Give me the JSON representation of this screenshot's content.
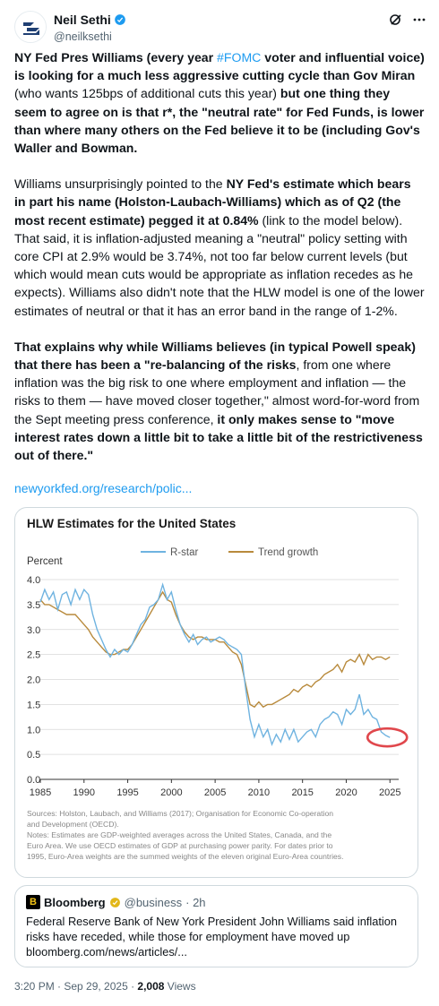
{
  "author": {
    "name": "Neil Sethi",
    "handle": "@neilksethi"
  },
  "tweet": {
    "p1": {
      "a": "NY Fed Pres Williams (every year ",
      "hashtag": "#FOMC",
      "b": " voter and influential voice) is looking for a much less aggressive cutting cycle than Gov Miran",
      "c": " (who wants 125bps of additional cuts this year) ",
      "d": "but one thing they seem to agree on is that r*, the \"neutral rate\" for Fed Funds, is lower than where many others on the Fed believe it to be (including Gov's Waller and Bowman."
    },
    "p2": {
      "a": "Williams unsurprisingly pointed to the ",
      "b": "NY Fed's estimate which bears in part his name (Holston-Laubach-Williams) which as of Q2 (the most recent estimate) pegged it at 0.84%",
      "c": " (link to the model below).  That said, it is inflation-adjusted meaning a \"neutral\" policy setting with core CPI at 2.9% would be 3.74%, not too far below current levels (but which would mean cuts would be appropriate as inflation recedes as he expects).  Williams also didn't note that the HLW model is one of the lower estimates of neutral or that it has an error band in the range of 1-2%."
    },
    "p3": {
      "a": "That explains why while Williams believes (in typical Powell speak) that there has been a \"re-balancing of the risks",
      "b": ", from one where inflation was the big risk to one where employment and inflation — the risks to them — have moved closer together,\" almost word-for-word from the Sept meeting press conference, ",
      "c": "it only makes sense to \"move interest rates down a little bit to take a little bit of the restrictiveness out of there.\""
    },
    "link": "newyorkfed.org/research/polic..."
  },
  "chart_data": {
    "type": "line",
    "title": "HLW Estimates for the United States",
    "ylabel": "Percent",
    "xlabel": "",
    "xlim": [
      1985,
      2026
    ],
    "ylim": [
      0.0,
      4.0
    ],
    "x_ticks": [
      "1985",
      "1990",
      "1995",
      "2000",
      "2005",
      "2010",
      "2015",
      "2020",
      "2025"
    ],
    "y_ticks": [
      "0.0",
      "0.5",
      "1.0",
      "1.5",
      "2.0",
      "2.5",
      "3.0",
      "3.5",
      "4.0"
    ],
    "legend": [
      "R-star",
      "Trend growth"
    ],
    "legend_position": "top-center",
    "series": [
      {
        "name": "R-star",
        "color": "#6fb3e0",
        "points": [
          [
            1985,
            3.55
          ],
          [
            1985.5,
            3.8
          ],
          [
            1986,
            3.6
          ],
          [
            1986.5,
            3.75
          ],
          [
            1987,
            3.4
          ],
          [
            1987.5,
            3.7
          ],
          [
            1988,
            3.75
          ],
          [
            1988.5,
            3.5
          ],
          [
            1989,
            3.8
          ],
          [
            1989.5,
            3.6
          ],
          [
            1990,
            3.8
          ],
          [
            1990.5,
            3.7
          ],
          [
            1991,
            3.3
          ],
          [
            1991.5,
            3.0
          ],
          [
            1992,
            2.8
          ],
          [
            1992.5,
            2.6
          ],
          [
            1993,
            2.45
          ],
          [
            1993.5,
            2.6
          ],
          [
            1994,
            2.5
          ],
          [
            1994.5,
            2.6
          ],
          [
            1995,
            2.55
          ],
          [
            1995.5,
            2.7
          ],
          [
            1996,
            2.9
          ],
          [
            1996.5,
            3.1
          ],
          [
            1997,
            3.2
          ],
          [
            1997.5,
            3.45
          ],
          [
            1998,
            3.5
          ],
          [
            1998.5,
            3.6
          ],
          [
            1999,
            3.9
          ],
          [
            1999.5,
            3.6
          ],
          [
            2000,
            3.75
          ],
          [
            2000.5,
            3.4
          ],
          [
            2001,
            3.1
          ],
          [
            2001.5,
            2.9
          ],
          [
            2002,
            2.75
          ],
          [
            2002.5,
            2.9
          ],
          [
            2003,
            2.7
          ],
          [
            2003.5,
            2.8
          ],
          [
            2004,
            2.85
          ],
          [
            2004.5,
            2.75
          ],
          [
            2005,
            2.8
          ],
          [
            2005.5,
            2.85
          ],
          [
            2006,
            2.8
          ],
          [
            2006.5,
            2.7
          ],
          [
            2007,
            2.65
          ],
          [
            2007.5,
            2.6
          ],
          [
            2008,
            2.5
          ],
          [
            2008.5,
            1.8
          ],
          [
            2009,
            1.2
          ],
          [
            2009.5,
            0.85
          ],
          [
            2010,
            1.1
          ],
          [
            2010.5,
            0.85
          ],
          [
            2011,
            1.0
          ],
          [
            2011.5,
            0.7
          ],
          [
            2012,
            0.9
          ],
          [
            2012.5,
            0.75
          ],
          [
            2013,
            1.0
          ],
          [
            2013.5,
            0.8
          ],
          [
            2014,
            1.0
          ],
          [
            2014.5,
            0.75
          ],
          [
            2015,
            0.85
          ],
          [
            2015.5,
            0.95
          ],
          [
            2016,
            1.0
          ],
          [
            2016.5,
            0.85
          ],
          [
            2017,
            1.1
          ],
          [
            2017.5,
            1.2
          ],
          [
            2018,
            1.25
          ],
          [
            2018.5,
            1.35
          ],
          [
            2019,
            1.3
          ],
          [
            2019.5,
            1.1
          ],
          [
            2020,
            1.4
          ],
          [
            2020.5,
            1.3
          ],
          [
            2021,
            1.4
          ],
          [
            2021.5,
            1.7
          ],
          [
            2022,
            1.3
          ],
          [
            2022.5,
            1.4
          ],
          [
            2023,
            1.25
          ],
          [
            2023.5,
            1.2
          ],
          [
            2024,
            0.95
          ],
          [
            2024.5,
            0.88
          ],
          [
            2025,
            0.84
          ]
        ]
      },
      {
        "name": "Trend growth",
        "color": "#b88a3c",
        "points": [
          [
            1985,
            3.6
          ],
          [
            1985.5,
            3.5
          ],
          [
            1986,
            3.5
          ],
          [
            1986.5,
            3.45
          ],
          [
            1987,
            3.4
          ],
          [
            1987.5,
            3.35
          ],
          [
            1988,
            3.3
          ],
          [
            1988.5,
            3.3
          ],
          [
            1989,
            3.3
          ],
          [
            1989.5,
            3.2
          ],
          [
            1990,
            3.1
          ],
          [
            1990.5,
            3.0
          ],
          [
            1991,
            2.85
          ],
          [
            1991.5,
            2.75
          ],
          [
            1992,
            2.65
          ],
          [
            1992.5,
            2.55
          ],
          [
            1993,
            2.5
          ],
          [
            1993.5,
            2.5
          ],
          [
            1994,
            2.55
          ],
          [
            1994.5,
            2.6
          ],
          [
            1995,
            2.6
          ],
          [
            1995.5,
            2.7
          ],
          [
            1996,
            2.85
          ],
          [
            1996.5,
            3.0
          ],
          [
            1997,
            3.15
          ],
          [
            1997.5,
            3.3
          ],
          [
            1998,
            3.45
          ],
          [
            1998.5,
            3.6
          ],
          [
            1999,
            3.75
          ],
          [
            1999.5,
            3.6
          ],
          [
            2000,
            3.55
          ],
          [
            2000.5,
            3.3
          ],
          [
            2001,
            3.1
          ],
          [
            2001.5,
            2.95
          ],
          [
            2002,
            2.85
          ],
          [
            2002.5,
            2.8
          ],
          [
            2003,
            2.85
          ],
          [
            2003.5,
            2.85
          ],
          [
            2004,
            2.8
          ],
          [
            2004.5,
            2.8
          ],
          [
            2005,
            2.8
          ],
          [
            2005.5,
            2.75
          ],
          [
            2006,
            2.75
          ],
          [
            2006.5,
            2.65
          ],
          [
            2007,
            2.55
          ],
          [
            2007.5,
            2.5
          ],
          [
            2008,
            2.3
          ],
          [
            2008.5,
            1.9
          ],
          [
            2009,
            1.5
          ],
          [
            2009.5,
            1.45
          ],
          [
            2010,
            1.55
          ],
          [
            2010.5,
            1.45
          ],
          [
            2011,
            1.5
          ],
          [
            2011.5,
            1.5
          ],
          [
            2012,
            1.55
          ],
          [
            2012.5,
            1.6
          ],
          [
            2013,
            1.65
          ],
          [
            2013.5,
            1.7
          ],
          [
            2014,
            1.8
          ],
          [
            2014.5,
            1.75
          ],
          [
            2015,
            1.85
          ],
          [
            2015.5,
            1.9
          ],
          [
            2016,
            1.85
          ],
          [
            2016.5,
            1.95
          ],
          [
            2017,
            2.0
          ],
          [
            2017.5,
            2.1
          ],
          [
            2018,
            2.15
          ],
          [
            2018.5,
            2.2
          ],
          [
            2019,
            2.3
          ],
          [
            2019.5,
            2.15
          ],
          [
            2020,
            2.35
          ],
          [
            2020.5,
            2.4
          ],
          [
            2021,
            2.35
          ],
          [
            2021.5,
            2.5
          ],
          [
            2022,
            2.3
          ],
          [
            2022.5,
            2.5
          ],
          [
            2023,
            2.4
          ],
          [
            2023.5,
            2.45
          ],
          [
            2024,
            2.45
          ],
          [
            2024.5,
            2.4
          ],
          [
            2025,
            2.45
          ]
        ]
      }
    ],
    "annotation": "red ellipse highlighting latest R-star value",
    "annotation_color": "#e0474c",
    "sources_lines": [
      "Sources: Holston, Laubach, and Williams (2017); Organisation for Economic Co-operation",
      "and Development (OECD).",
      "Notes: Estimates are GDP-weighted averages across the United States, Canada, and the",
      "Euro Area. We use OECD estimates of GDP at purchasing power parity. For dates prior to",
      "1995, Euro-Area weights are the summed weights of the eleven original Euro-Area countries."
    ]
  },
  "quote": {
    "logo": "B",
    "name": "Bloomberg",
    "handle": "@business",
    "time": "· 2h",
    "text": "Federal Reserve Bank of New York President John Williams said inflation risks have receded, while those for employment have moved up bloomberg.com/news/articles/..."
  },
  "footer": {
    "time": "3:20 PM · Sep 29, 2025 · ",
    "views": "2,008",
    "views_label": " Views"
  }
}
